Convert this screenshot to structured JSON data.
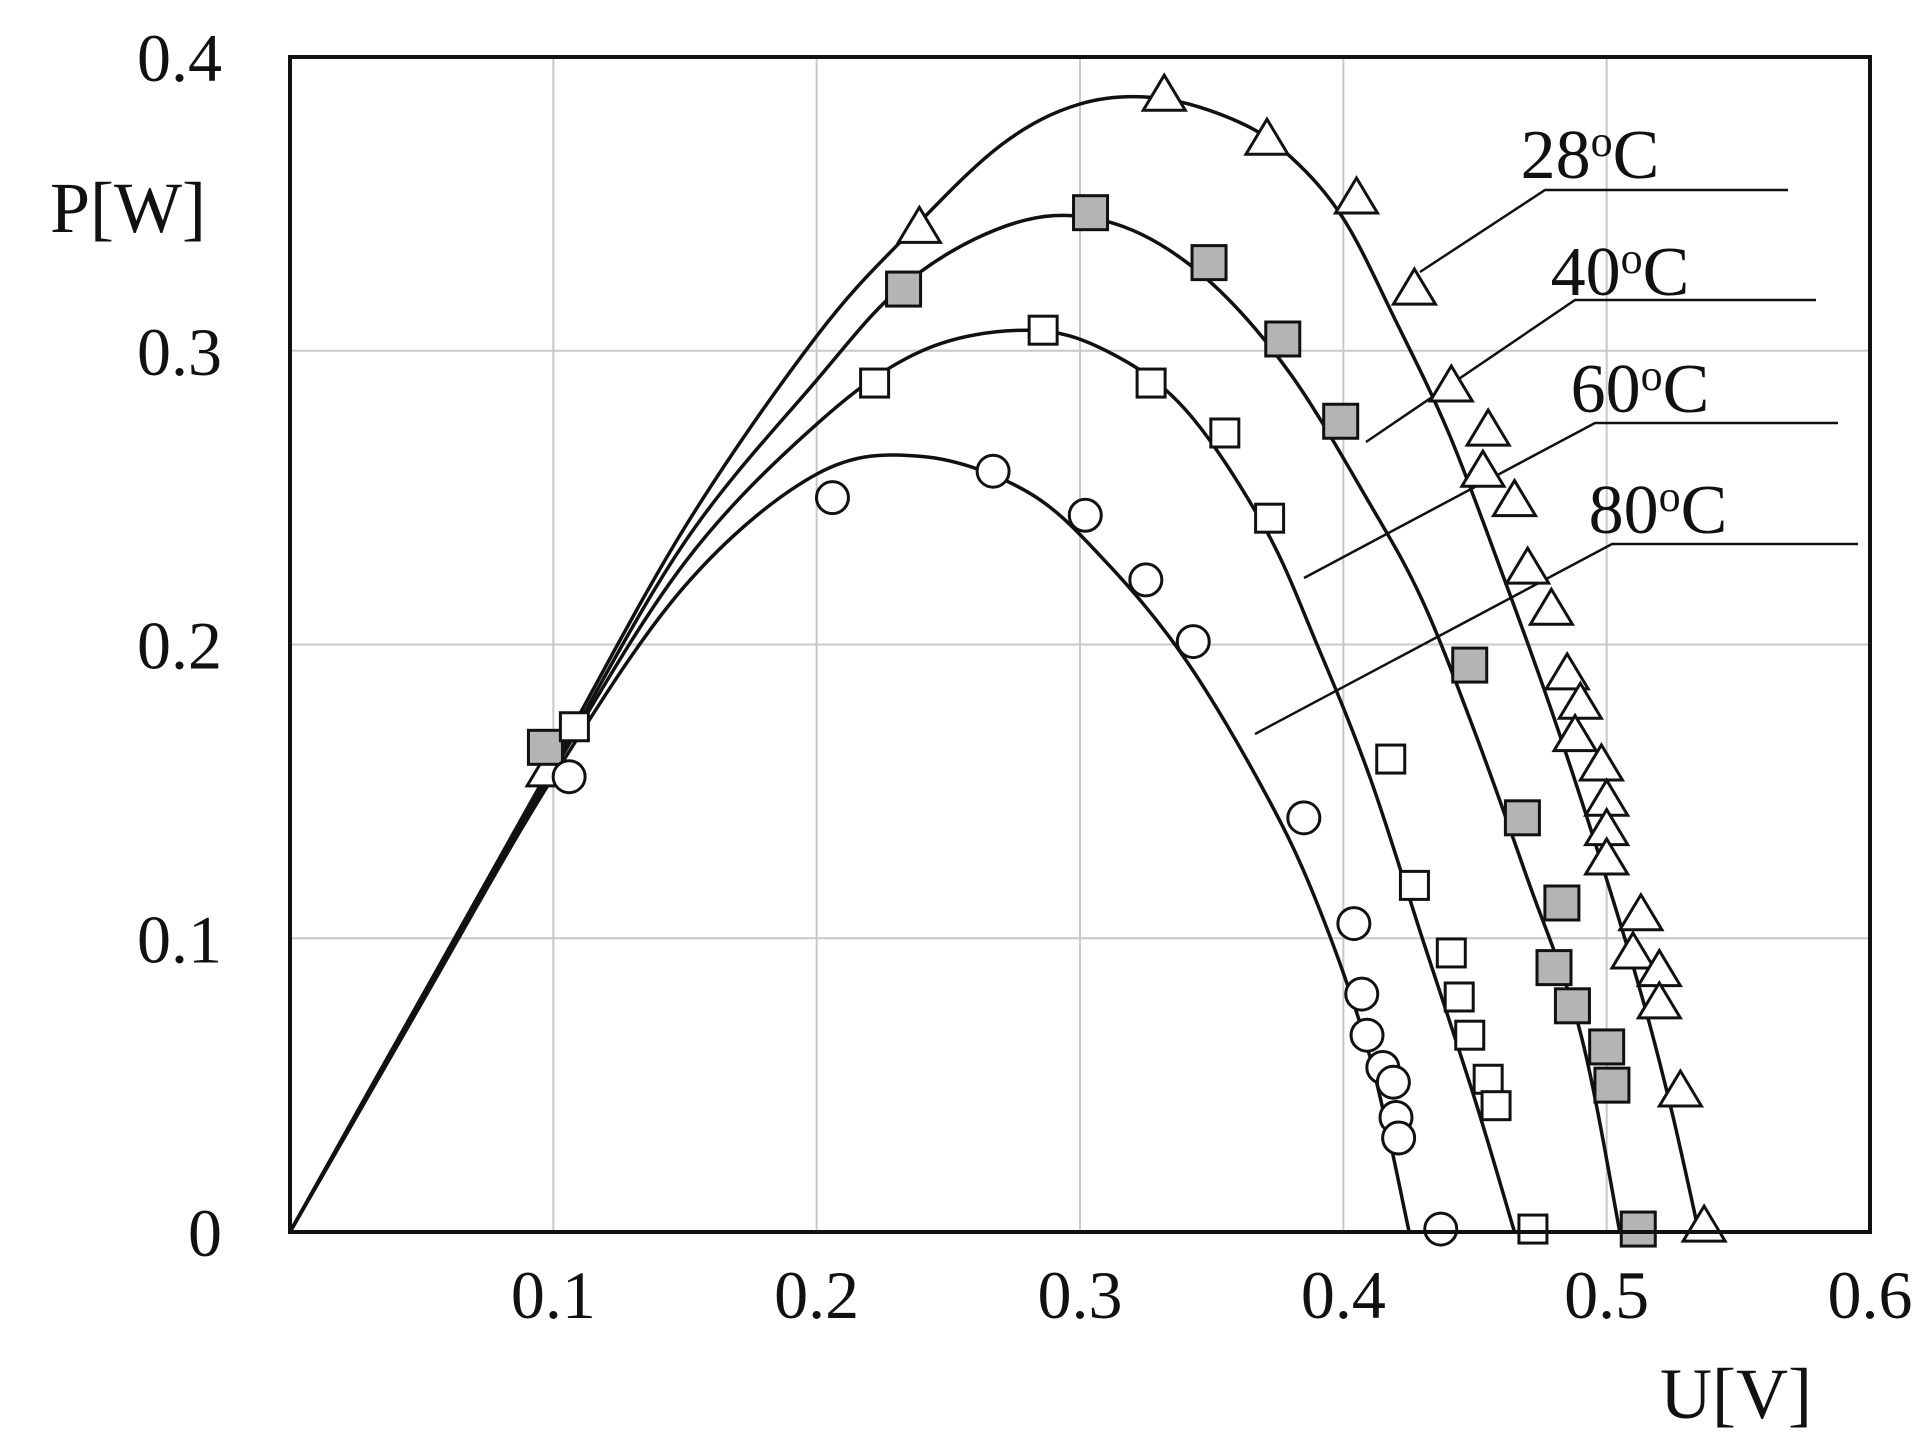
{
  "chart_data": {
    "type": "scatter",
    "xlabel": "U[V]",
    "ylabel": "P[W]",
    "xlim": [
      0,
      0.6
    ],
    "ylim": [
      0,
      0.4
    ],
    "x_ticks": [
      "0.1",
      "0.2",
      "0.3",
      "0.4",
      "0.5",
      "0.6"
    ],
    "y_ticks": [
      "0",
      "0.1",
      "0.2",
      "0.3",
      "0.4"
    ],
    "grid": true,
    "legend": "none",
    "series": [
      {
        "name": "28",
        "unit": "oC",
        "marker": "triangle-open",
        "curve": [
          [
            0,
            0
          ],
          [
            0.05,
            0.08
          ],
          [
            0.1,
            0.16
          ],
          [
            0.15,
            0.24
          ],
          [
            0.2,
            0.305
          ],
          [
            0.235,
            0.34
          ],
          [
            0.27,
            0.37
          ],
          [
            0.3,
            0.384
          ],
          [
            0.33,
            0.386
          ],
          [
            0.36,
            0.378
          ],
          [
            0.38,
            0.366
          ],
          [
            0.4,
            0.345
          ],
          [
            0.42,
            0.31
          ],
          [
            0.44,
            0.272
          ],
          [
            0.46,
            0.225
          ],
          [
            0.48,
            0.175
          ],
          [
            0.5,
            0.12
          ],
          [
            0.515,
            0.075
          ],
          [
            0.525,
            0.04
          ],
          [
            0.535,
            0
          ]
        ],
        "points": [
          [
            0.098,
            0.157
          ],
          [
            0.239,
            0.342
          ],
          [
            0.332,
            0.387
          ],
          [
            0.371,
            0.372
          ],
          [
            0.405,
            0.352
          ],
          [
            0.427,
            0.321
          ],
          [
            0.441,
            0.288
          ],
          [
            0.455,
            0.273
          ],
          [
            0.453,
            0.259
          ],
          [
            0.465,
            0.249
          ],
          [
            0.47,
            0.226
          ],
          [
            0.479,
            0.212
          ],
          [
            0.485,
            0.19
          ],
          [
            0.49,
            0.18
          ],
          [
            0.488,
            0.169
          ],
          [
            0.498,
            0.159
          ],
          [
            0.5,
            0.147
          ],
          [
            0.5,
            0.137
          ],
          [
            0.5,
            0.127
          ],
          [
            0.513,
            0.108
          ],
          [
            0.51,
            0.095
          ],
          [
            0.52,
            0.089
          ],
          [
            0.52,
            0.078
          ],
          [
            0.528,
            0.048
          ],
          [
            0.537,
            0.002
          ]
        ]
      },
      {
        "name": "40",
        "unit": "oC",
        "marker": "square-filled",
        "curve": [
          [
            0,
            0
          ],
          [
            0.05,
            0.08
          ],
          [
            0.1,
            0.158
          ],
          [
            0.15,
            0.235
          ],
          [
            0.2,
            0.29
          ],
          [
            0.23,
            0.32
          ],
          [
            0.26,
            0.338
          ],
          [
            0.29,
            0.346
          ],
          [
            0.32,
            0.341
          ],
          [
            0.35,
            0.323
          ],
          [
            0.38,
            0.292
          ],
          [
            0.41,
            0.248
          ],
          [
            0.43,
            0.215
          ],
          [
            0.45,
            0.17
          ],
          [
            0.47,
            0.12
          ],
          [
            0.49,
            0.068
          ],
          [
            0.505,
            0
          ]
        ],
        "points": [
          [
            0.097,
            0.165
          ],
          [
            0.233,
            0.321
          ],
          [
            0.304,
            0.347
          ],
          [
            0.349,
            0.33
          ],
          [
            0.377,
            0.304
          ],
          [
            0.399,
            0.276
          ],
          [
            0.448,
            0.193
          ],
          [
            0.468,
            0.141
          ],
          [
            0.483,
            0.112
          ],
          [
            0.48,
            0.09
          ],
          [
            0.487,
            0.077
          ],
          [
            0.5,
            0.063
          ],
          [
            0.502,
            0.05
          ],
          [
            0.512,
            0.001
          ]
        ]
      },
      {
        "name": "60",
        "unit": "oC",
        "marker": "square-open",
        "curve": [
          [
            0,
            0
          ],
          [
            0.05,
            0.078
          ],
          [
            0.1,
            0.157
          ],
          [
            0.15,
            0.228
          ],
          [
            0.2,
            0.275
          ],
          [
            0.24,
            0.3
          ],
          [
            0.28,
            0.307
          ],
          [
            0.31,
            0.3
          ],
          [
            0.34,
            0.28
          ],
          [
            0.37,
            0.24
          ],
          [
            0.39,
            0.2
          ],
          [
            0.41,
            0.155
          ],
          [
            0.43,
            0.1
          ],
          [
            0.45,
            0.045
          ],
          [
            0.465,
            0
          ]
        ],
        "points": [
          [
            0.108,
            0.172
          ],
          [
            0.222,
            0.289
          ],
          [
            0.286,
            0.307
          ],
          [
            0.327,
            0.289
          ],
          [
            0.355,
            0.272
          ],
          [
            0.372,
            0.243
          ],
          [
            0.418,
            0.161
          ],
          [
            0.427,
            0.118
          ],
          [
            0.441,
            0.095
          ],
          [
            0.444,
            0.08
          ],
          [
            0.448,
            0.067
          ],
          [
            0.455,
            0.052
          ],
          [
            0.458,
            0.043
          ],
          [
            0.472,
            0.001
          ]
        ]
      },
      {
        "name": "80",
        "unit": "oC",
        "marker": "circle-open",
        "curve": [
          [
            0,
            0
          ],
          [
            0.05,
            0.078
          ],
          [
            0.1,
            0.155
          ],
          [
            0.15,
            0.22
          ],
          [
            0.2,
            0.258
          ],
          [
            0.24,
            0.264
          ],
          [
            0.28,
            0.252
          ],
          [
            0.31,
            0.228
          ],
          [
            0.34,
            0.195
          ],
          [
            0.37,
            0.15
          ],
          [
            0.39,
            0.112
          ],
          [
            0.41,
            0.06
          ],
          [
            0.425,
            0
          ]
        ],
        "points": [
          [
            0.106,
            0.155
          ],
          [
            0.206,
            0.25
          ],
          [
            0.267,
            0.259
          ],
          [
            0.302,
            0.244
          ],
          [
            0.325,
            0.222
          ],
          [
            0.343,
            0.201
          ],
          [
            0.385,
            0.141
          ],
          [
            0.404,
            0.105
          ],
          [
            0.407,
            0.081
          ],
          [
            0.409,
            0.067
          ],
          [
            0.415,
            0.056
          ],
          [
            0.419,
            0.051
          ],
          [
            0.42,
            0.039
          ],
          [
            0.421,
            0.032
          ],
          [
            0.437,
            0.001
          ]
        ]
      }
    ]
  }
}
